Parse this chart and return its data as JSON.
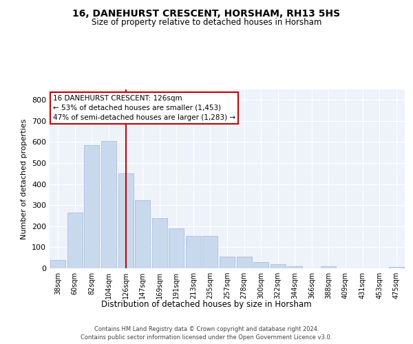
{
  "title": "16, DANEHURST CRESCENT, HORSHAM, RH13 5HS",
  "subtitle": "Size of property relative to detached houses in Horsham",
  "xlabel": "Distribution of detached houses by size in Horsham",
  "ylabel": "Number of detached properties",
  "categories": [
    "38sqm",
    "60sqm",
    "82sqm",
    "104sqm",
    "126sqm",
    "147sqm",
    "169sqm",
    "191sqm",
    "213sqm",
    "235sqm",
    "257sqm",
    "278sqm",
    "300sqm",
    "322sqm",
    "344sqm",
    "366sqm",
    "388sqm",
    "409sqm",
    "431sqm",
    "453sqm",
    "475sqm"
  ],
  "values": [
    40,
    265,
    585,
    605,
    450,
    325,
    240,
    190,
    155,
    155,
    55,
    55,
    30,
    20,
    10,
    0,
    10,
    0,
    0,
    0,
    5
  ],
  "bar_color": "#c9d9ed",
  "bar_edge_color": "#a0b8d8",
  "highlight_index": 4,
  "highlight_color": "#cc0000",
  "annotation_text": "16 DANEHURST CRESCENT: 126sqm\n← 53% of detached houses are smaller (1,453)\n47% of semi-detached houses are larger (1,283) →",
  "annotation_box_color": "#ffffff",
  "annotation_box_edge": "#cc0000",
  "ylim": [
    0,
    850
  ],
  "yticks": [
    0,
    100,
    200,
    300,
    400,
    500,
    600,
    700,
    800
  ],
  "bg_color": "#eef2f9",
  "grid_color": "#ffffff",
  "footer_line1": "Contains HM Land Registry data © Crown copyright and database right 2024.",
  "footer_line2": "Contains public sector information licensed under the Open Government Licence v3.0."
}
